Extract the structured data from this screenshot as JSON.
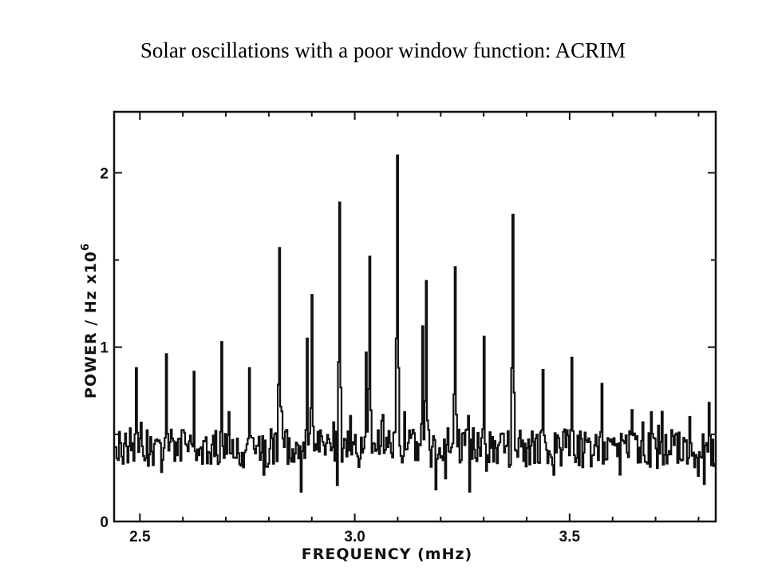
{
  "slide": {
    "title": "Solar oscillations with a poor window function: ACRIM"
  },
  "chart_data": {
    "type": "line",
    "title": "",
    "xlabel": "FREQUENCY (mHz)",
    "ylabel": "POWER / Hz x10",
    "ylabel_exponent": "6",
    "xlim": [
      2.44,
      3.84
    ],
    "ylim": [
      0,
      2.35
    ],
    "x_ticks": [
      {
        "value": 2.5,
        "label": "2.5"
      },
      {
        "value": 3.0,
        "label": "3.0"
      },
      {
        "value": 3.5,
        "label": "3.5"
      }
    ],
    "y_ticks": [
      {
        "value": 0,
        "label": "0"
      },
      {
        "value": 1,
        "label": "1"
      },
      {
        "value": 2,
        "label": "2"
      }
    ],
    "grid": false,
    "line_color": "#111111",
    "baseline": 0.42,
    "peaks": [
      {
        "x": 2.49,
        "y": 0.88
      },
      {
        "x": 2.56,
        "y": 0.96
      },
      {
        "x": 2.625,
        "y": 0.86
      },
      {
        "x": 2.69,
        "y": 1.03
      },
      {
        "x": 2.755,
        "y": 0.88
      },
      {
        "x": 2.825,
        "y": 1.57
      },
      {
        "x": 2.888,
        "y": 1.05
      },
      {
        "x": 2.898,
        "y": 1.3
      },
      {
        "x": 2.965,
        "y": 1.83
      },
      {
        "x": 3.025,
        "y": 0.97
      },
      {
        "x": 3.033,
        "y": 1.52
      },
      {
        "x": 3.098,
        "y": 2.1
      },
      {
        "x": 3.158,
        "y": 1.12
      },
      {
        "x": 3.166,
        "y": 1.38
      },
      {
        "x": 3.232,
        "y": 1.46
      },
      {
        "x": 3.3,
        "y": 1.06
      },
      {
        "x": 3.368,
        "y": 1.76
      },
      {
        "x": 3.438,
        "y": 0.87
      },
      {
        "x": 3.505,
        "y": 0.94
      },
      {
        "x": 3.575,
        "y": 0.79
      },
      {
        "x": 3.645,
        "y": 0.64
      },
      {
        "x": 3.715,
        "y": 0.63
      },
      {
        "x": 3.778,
        "y": 0.6
      }
    ]
  }
}
